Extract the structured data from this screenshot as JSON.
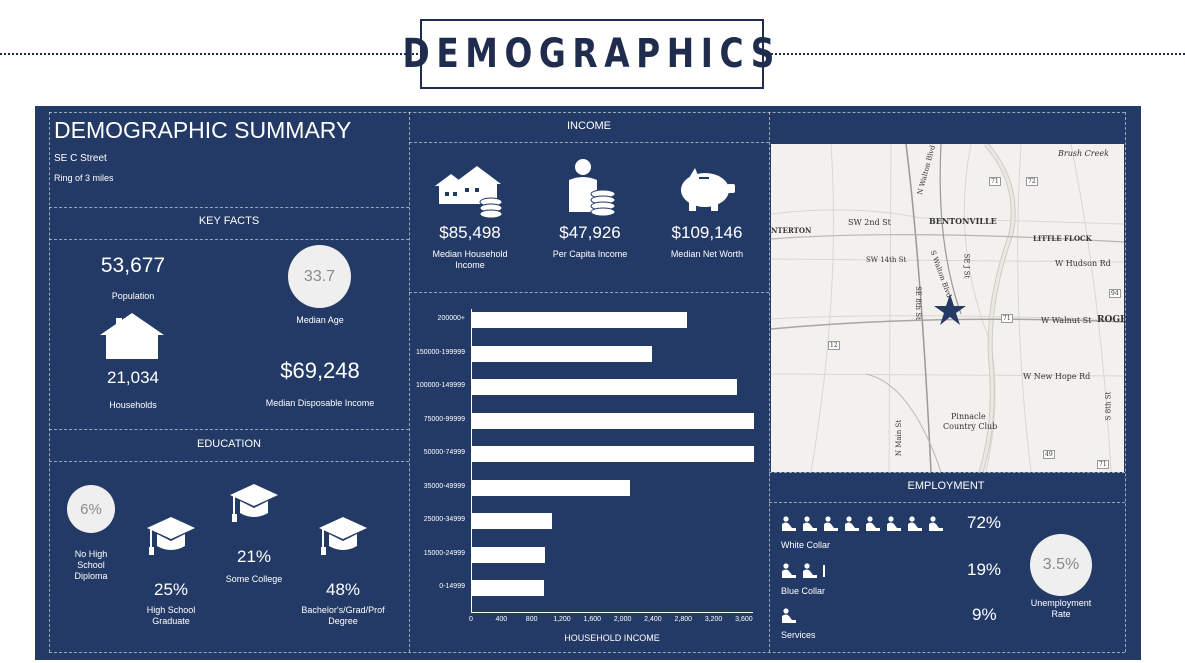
{
  "page_title": "DEMOGRAPHICS",
  "summary": {
    "title": "DEMOGRAPHIC SUMMARY",
    "address": "SE C Street",
    "ring": "Ring of 3 miles"
  },
  "key_facts": {
    "header": "KEY FACTS",
    "population_value": "53,677",
    "population_label": "Population",
    "median_age_value": "33.7",
    "median_age_label": "Median Age",
    "households_value": "21,034",
    "households_label": "Households",
    "disposable_income_value": "$69,248",
    "disposable_income_label": "Median Disposable Income"
  },
  "education": {
    "header": "EDUCATION",
    "no_hs_value": "6%",
    "no_hs_label_1": "No High",
    "no_hs_label_2": "School",
    "no_hs_label_3": "Diploma",
    "hs_value": "25%",
    "hs_label_1": "High School",
    "hs_label_2": "Graduate",
    "college_value": "21%",
    "college_label": "Some College",
    "bachelor_value": "48%",
    "bachelor_label_1": "Bachelor's/Grad/Prof",
    "bachelor_label_2": "Degree"
  },
  "income": {
    "header": "INCOME",
    "household_value": "$85,498",
    "household_label_1": "Median Household",
    "household_label_2": "Income",
    "per_capita_value": "$47,926",
    "per_capita_label": "Per Capita Income",
    "net_worth_value": "$109,146",
    "net_worth_label": "Median Net Worth"
  },
  "chart_data": {
    "type": "bar",
    "orientation": "horizontal",
    "xlabel": "HOUSEHOLD INCOME",
    "categories": [
      "200000+",
      "150000-199999",
      "100000-149999",
      "75000-99999",
      "50000-74999",
      "35000-49999",
      "25000-34999",
      "15000-24999",
      "0-14999"
    ],
    "values": [
      2830,
      2380,
      3500,
      3720,
      3720,
      2080,
      1050,
      960,
      950
    ],
    "xticks": [
      "0",
      "400",
      "800",
      "1,200",
      "1,600",
      "2,000",
      "2,400",
      "2,800",
      "3,200",
      "3,600"
    ],
    "xlim": [
      0,
      3720
    ]
  },
  "map": {
    "labels": [
      "Brush Creek",
      "BENTONVILLE",
      "LITTLE FLOCK",
      "SW 2nd St",
      "SW 14th St",
      "W Hudson Rd",
      "W Walnut St",
      "ROGER",
      "W New Hope Rd",
      "Pinnacle",
      "Country Club",
      "N Walton Blvd",
      "S Walton Blvd",
      "S 8th St",
      "N Main St",
      "SE J St",
      "SE 8th St",
      "NTERTON",
      "72",
      "71",
      "71",
      "94",
      "12",
      "49",
      "71"
    ]
  },
  "employment": {
    "header": "EMPLOYMENT",
    "white_collar_value": "72%",
    "white_collar_label": "White Collar",
    "blue_collar_value": "19%",
    "blue_collar_label": "Blue Collar",
    "services_value": "9%",
    "services_label": "Services",
    "unemployment_value": "3.5%",
    "unemployment_label_1": "Unemployment",
    "unemployment_label_2": "Rate",
    "icon_color": "#ffffff"
  }
}
